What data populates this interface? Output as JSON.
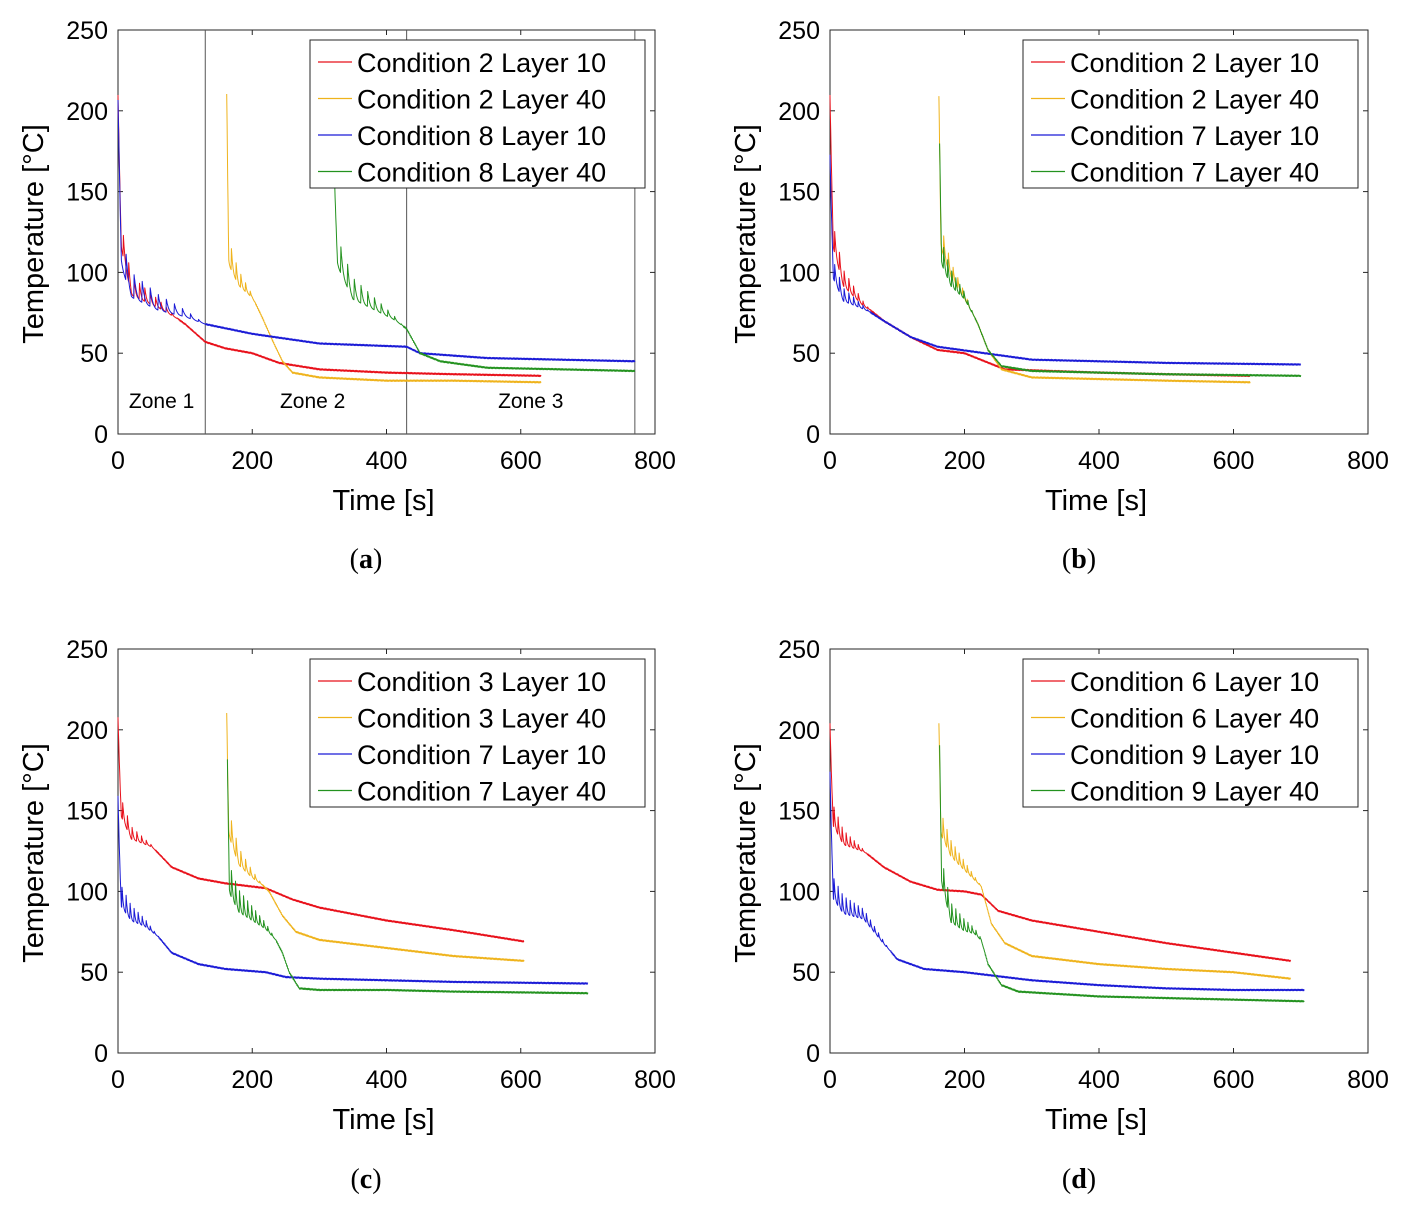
{
  "figure": {
    "captions": [
      "(a)",
      "(b)",
      "(c)",
      "(d)"
    ]
  },
  "chart_data": [
    {
      "panel": "a",
      "type": "line",
      "xlabel": "Time [s]",
      "ylabel": "Temperature [°C]",
      "xlim": [
        0,
        800
      ],
      "ylim": [
        0,
        250
      ],
      "xticks": [
        0,
        200,
        400,
        600,
        800
      ],
      "yticks": [
        0,
        50,
        100,
        150,
        200,
        250
      ],
      "legend_location": "top-right",
      "zone_lines": [
        130,
        430,
        770
      ],
      "zones": [
        {
          "label": "Zone 1",
          "x": 65
        },
        {
          "label": "Zone 2",
          "x": 290
        },
        {
          "label": "Zone 3",
          "x": 615
        }
      ],
      "series": [
        {
          "name": "Condition 2 Layer 10",
          "color": "#e8101a",
          "start": 0,
          "end": 630,
          "points": [
            [
              0,
              200
            ],
            [
              5,
              120
            ],
            [
              20,
              90
            ],
            [
              60,
              80
            ],
            [
              100,
              68
            ],
            [
              130,
              57
            ],
            [
              160,
              53
            ],
            [
              200,
              50
            ],
            [
              240,
              44
            ],
            [
              300,
              40
            ],
            [
              400,
              38
            ],
            [
              500,
              37
            ],
            [
              630,
              36
            ]
          ],
          "osc": {
            "from": 0,
            "to": 90,
            "amp": 15,
            "period": 8
          }
        },
        {
          "name": "Condition 2 Layer 40",
          "color": "#efb31c",
          "start": 162,
          "end": 630,
          "points": [
            [
              162,
              200
            ],
            [
              165,
              110
            ],
            [
              180,
              95
            ],
            [
              200,
              85
            ],
            [
              215,
              72
            ],
            [
              230,
              58
            ],
            [
              245,
              45
            ],
            [
              260,
              38
            ],
            [
              300,
              35
            ],
            [
              400,
              33
            ],
            [
              500,
              33
            ],
            [
              630,
              32
            ]
          ],
          "osc": {
            "from": 162,
            "to": 205,
            "amp": 16,
            "period": 7
          }
        },
        {
          "name": "Condition 8 Layer 10",
          "color": "#1a1ad6",
          "start": 0,
          "end": 770,
          "points": [
            [
              0,
              195
            ],
            [
              5,
              110
            ],
            [
              20,
              90
            ],
            [
              60,
              80
            ],
            [
              100,
              74
            ],
            [
              130,
              68
            ],
            [
              200,
              62
            ],
            [
              300,
              56
            ],
            [
              430,
              54
            ],
            [
              450,
              50
            ],
            [
              550,
              47
            ],
            [
              770,
              45
            ]
          ],
          "osc": {
            "from": 0,
            "to": 130,
            "amp": 18,
            "period": 12
          }
        },
        {
          "name": "Condition 8 Layer 40",
          "color": "#23921f",
          "start": 322,
          "end": 770,
          "points": [
            [
              322,
              155
            ],
            [
              327,
              110
            ],
            [
              350,
              88
            ],
            [
              380,
              80
            ],
            [
              410,
              72
            ],
            [
              430,
              65
            ],
            [
              450,
              50
            ],
            [
              480,
              45
            ],
            [
              550,
              41
            ],
            [
              770,
              39
            ]
          ],
          "osc": {
            "from": 322,
            "to": 425,
            "amp": 18,
            "period": 10
          }
        }
      ]
    },
    {
      "panel": "b",
      "type": "line",
      "xlabel": "Time [s]",
      "ylabel": "Temperature [°C]",
      "xlim": [
        0,
        800
      ],
      "ylim": [
        0,
        250
      ],
      "xticks": [
        0,
        200,
        400,
        600,
        800
      ],
      "yticks": [
        0,
        50,
        100,
        150,
        200,
        250
      ],
      "legend_location": "top-right",
      "zone_lines": [],
      "zones": [],
      "series": [
        {
          "name": "Condition 2 Layer 10",
          "color": "#e8101a",
          "start": 0,
          "end": 625,
          "points": [
            [
              0,
              200
            ],
            [
              5,
              120
            ],
            [
              20,
              95
            ],
            [
              50,
              80
            ],
            [
              80,
              70
            ],
            [
              120,
              60
            ],
            [
              160,
              52
            ],
            [
              200,
              50
            ],
            [
              230,
              45
            ],
            [
              260,
              40
            ],
            [
              400,
              38
            ],
            [
              500,
              37
            ],
            [
              625,
              36
            ]
          ],
          "osc": {
            "from": 0,
            "to": 60,
            "amp": 15,
            "period": 7
          }
        },
        {
          "name": "Condition 2 Layer 40",
          "color": "#efb31c",
          "start": 162,
          "end": 625,
          "points": [
            [
              162,
              200
            ],
            [
              165,
              120
            ],
            [
              180,
              100
            ],
            [
              200,
              85
            ],
            [
              220,
              68
            ],
            [
              235,
              52
            ],
            [
              255,
              40
            ],
            [
              300,
              35
            ],
            [
              400,
              34
            ],
            [
              500,
              33
            ],
            [
              625,
              32
            ]
          ],
          "osc": {
            "from": 162,
            "to": 215,
            "amp": 14,
            "period": 7
          }
        },
        {
          "name": "Condition 7 Layer 10",
          "color": "#1a1ad6",
          "start": 0,
          "end": 700,
          "points": [
            [
              0,
              165
            ],
            [
              5,
              100
            ],
            [
              20,
              85
            ],
            [
              50,
              78
            ],
            [
              80,
              70
            ],
            [
              120,
              60
            ],
            [
              160,
              54
            ],
            [
              230,
              50
            ],
            [
              300,
              46
            ],
            [
              400,
              45
            ],
            [
              500,
              44
            ],
            [
              700,
              43
            ]
          ],
          "osc": {
            "from": 0,
            "to": 60,
            "amp": 12,
            "period": 7
          }
        },
        {
          "name": "Condition 7 Layer 40",
          "color": "#23921f",
          "start": 163,
          "end": 700,
          "points": [
            [
              163,
              170
            ],
            [
              166,
              110
            ],
            [
              180,
              95
            ],
            [
              200,
              85
            ],
            [
              220,
              68
            ],
            [
              235,
              52
            ],
            [
              255,
              42
            ],
            [
              300,
              39
            ],
            [
              400,
              38
            ],
            [
              500,
              37
            ],
            [
              700,
              36
            ]
          ],
          "osc": {
            "from": 163,
            "to": 215,
            "amp": 15,
            "period": 6
          }
        }
      ]
    },
    {
      "panel": "c",
      "type": "line",
      "xlabel": "Time [s]",
      "ylabel": "Temperature [°C]",
      "xlim": [
        0,
        800
      ],
      "ylim": [
        0,
        250
      ],
      "xticks": [
        0,
        200,
        400,
        600,
        800
      ],
      "yticks": [
        0,
        50,
        100,
        150,
        200,
        250
      ],
      "legend_location": "top-right",
      "zone_lines": [],
      "zones": [],
      "series": [
        {
          "name": "Condition 3 Layer 10",
          "color": "#e8101a",
          "start": 0,
          "end": 605,
          "points": [
            [
              0,
              200
            ],
            [
              5,
              150
            ],
            [
              20,
              135
            ],
            [
              50,
              128
            ],
            [
              80,
              115
            ],
            [
              120,
              108
            ],
            [
              160,
              105
            ],
            [
              200,
              103
            ],
            [
              220,
              102
            ],
            [
              260,
              95
            ],
            [
              300,
              90
            ],
            [
              400,
              82
            ],
            [
              500,
              76
            ],
            [
              605,
              69
            ]
          ],
          "osc": {
            "from": 0,
            "to": 55,
            "amp": 12,
            "period": 7
          }
        },
        {
          "name": "Condition 3 Layer 40",
          "color": "#efb31c",
          "start": 162,
          "end": 605,
          "points": [
            [
              162,
              200
            ],
            [
              165,
              140
            ],
            [
              180,
              120
            ],
            [
              200,
              110
            ],
            [
              225,
              100
            ],
            [
              245,
              85
            ],
            [
              265,
              75
            ],
            [
              300,
              70
            ],
            [
              400,
              65
            ],
            [
              500,
              60
            ],
            [
              605,
              57
            ]
          ],
          "osc": {
            "from": 162,
            "to": 215,
            "amp": 16,
            "period": 7
          }
        },
        {
          "name": "Condition 7 Layer 10",
          "color": "#1a1ad6",
          "start": 0,
          "end": 700,
          "points": [
            [
              0,
              150
            ],
            [
              5,
              95
            ],
            [
              20,
              85
            ],
            [
              40,
              80
            ],
            [
              60,
              72
            ],
            [
              80,
              62
            ],
            [
              120,
              55
            ],
            [
              160,
              52
            ],
            [
              220,
              50
            ],
            [
              250,
              47
            ],
            [
              300,
              46
            ],
            [
              400,
              45
            ],
            [
              500,
              44
            ],
            [
              700,
              43
            ]
          ],
          "osc": {
            "from": 0,
            "to": 60,
            "amp": 14,
            "period": 6
          }
        },
        {
          "name": "Condition 7 Layer 40",
          "color": "#23921f",
          "start": 163,
          "end": 700,
          "points": [
            [
              163,
              170
            ],
            [
              166,
              105
            ],
            [
              180,
              92
            ],
            [
              200,
              85
            ],
            [
              220,
              78
            ],
            [
              235,
              70
            ],
            [
              245,
              62
            ],
            [
              255,
              50
            ],
            [
              270,
              40
            ],
            [
              300,
              39
            ],
            [
              400,
              39
            ],
            [
              500,
              38
            ],
            [
              700,
              37
            ]
          ],
          "osc": {
            "from": 163,
            "to": 235,
            "amp": 18,
            "period": 6
          }
        }
      ]
    },
    {
      "panel": "d",
      "type": "line",
      "xlabel": "Time [s]",
      "ylabel": "Temperature [°C]",
      "xlim": [
        0,
        800
      ],
      "ylim": [
        0,
        250
      ],
      "xticks": [
        0,
        200,
        400,
        600,
        800
      ],
      "yticks": [
        0,
        50,
        100,
        150,
        200,
        250
      ],
      "legend_location": "top-right",
      "zone_lines": [],
      "zones": [],
      "series": [
        {
          "name": "Condition 6 Layer 10",
          "color": "#e8101a",
          "start": 0,
          "end": 685,
          "points": [
            [
              0,
              195
            ],
            [
              5,
              145
            ],
            [
              20,
              132
            ],
            [
              50,
              125
            ],
            [
              80,
              115
            ],
            [
              120,
              106
            ],
            [
              160,
              101
            ],
            [
              200,
              100
            ],
            [
              225,
              98
            ],
            [
              250,
              88
            ],
            [
              300,
              82
            ],
            [
              400,
              75
            ],
            [
              500,
              68
            ],
            [
              685,
              57
            ]
          ],
          "osc": {
            "from": 0,
            "to": 55,
            "amp": 14,
            "period": 6
          }
        },
        {
          "name": "Condition 6 Layer 40",
          "color": "#efb31c",
          "start": 162,
          "end": 685,
          "points": [
            [
              162,
              195
            ],
            [
              165,
              140
            ],
            [
              180,
              125
            ],
            [
              200,
              115
            ],
            [
              225,
              103
            ],
            [
              240,
              80
            ],
            [
              260,
              68
            ],
            [
              300,
              60
            ],
            [
              400,
              55
            ],
            [
              500,
              52
            ],
            [
              600,
              50
            ],
            [
              685,
              46
            ]
          ],
          "osc": {
            "from": 162,
            "to": 225,
            "amp": 14,
            "period": 6
          }
        },
        {
          "name": "Condition 9 Layer 10",
          "color": "#1a1ad6",
          "start": 0,
          "end": 705,
          "points": [
            [
              0,
              165
            ],
            [
              5,
              100
            ],
            [
              20,
              90
            ],
            [
              50,
              85
            ],
            [
              80,
              68
            ],
            [
              100,
              58
            ],
            [
              140,
              52
            ],
            [
              200,
              50
            ],
            [
              300,
              45
            ],
            [
              400,
              42
            ],
            [
              500,
              40
            ],
            [
              600,
              39
            ],
            [
              705,
              39
            ]
          ],
          "osc": {
            "from": 0,
            "to": 90,
            "amp": 14,
            "period": 6
          }
        },
        {
          "name": "Condition 9 Layer 40",
          "color": "#23921f",
          "start": 163,
          "end": 705,
          "points": [
            [
              163,
              180
            ],
            [
              166,
              110
            ],
            [
              180,
              85
            ],
            [
              200,
              78
            ],
            [
              215,
              75
            ],
            [
              225,
              70
            ],
            [
              235,
              55
            ],
            [
              255,
              42
            ],
            [
              280,
              38
            ],
            [
              400,
              35
            ],
            [
              500,
              34
            ],
            [
              705,
              32
            ]
          ],
          "osc": {
            "from": 163,
            "to": 230,
            "amp": 16,
            "period": 6
          }
        }
      ]
    }
  ]
}
